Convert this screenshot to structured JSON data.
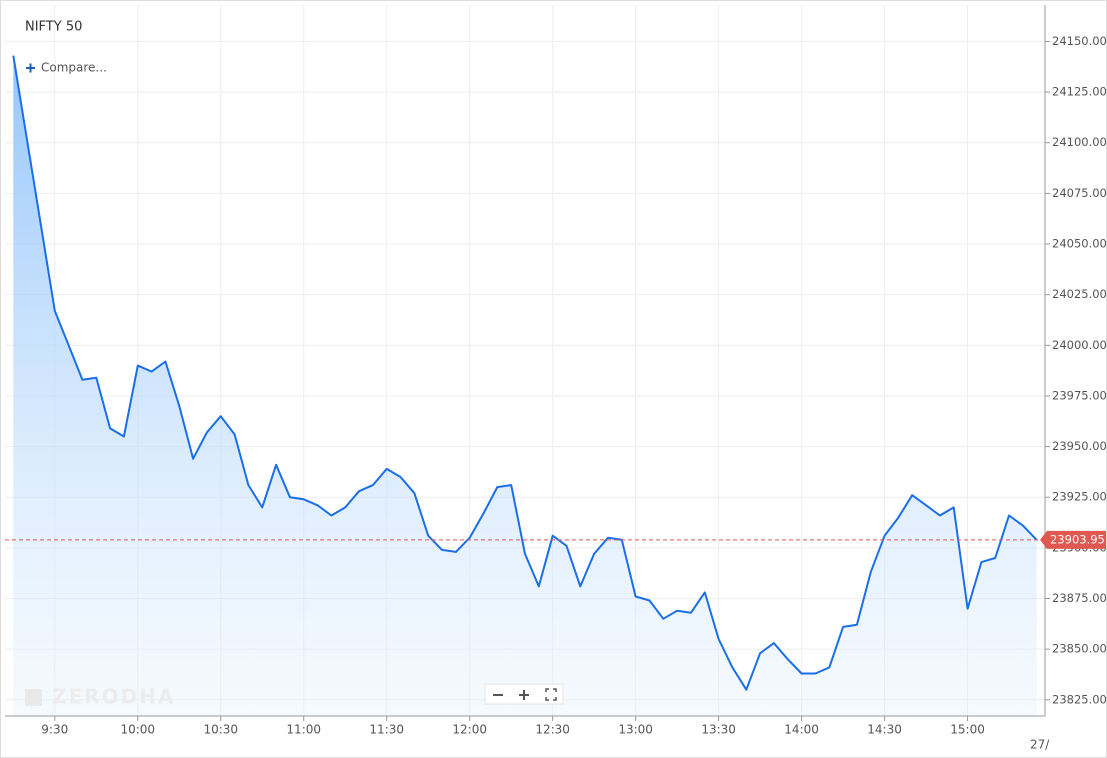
{
  "chart_data": {
    "type": "area",
    "title": "NIFTY 50",
    "compare_label": "Compare...",
    "watermark": "ZERODHA",
    "color": "#1a6fe8",
    "grid": true,
    "x": [
      555,
      565,
      570,
      575,
      580,
      585,
      590,
      595,
      600,
      605,
      610,
      615,
      620,
      625,
      630,
      635,
      640,
      645,
      650,
      655,
      660,
      665,
      670,
      675,
      680,
      685,
      690,
      695,
      700,
      705,
      710,
      715,
      720,
      725,
      730,
      735,
      740,
      745,
      750,
      755,
      760,
      765,
      770,
      775,
      780,
      785,
      790,
      795,
      800,
      805,
      810,
      815,
      820,
      825,
      830,
      835,
      840,
      845,
      850,
      855,
      860,
      865,
      870,
      875,
      880,
      885,
      890,
      895,
      900,
      905,
      910,
      915,
      920,
      925
    ],
    "values": [
      24143,
      24059,
      24017,
      24000,
      23983,
      23984,
      23959,
      23955,
      23990,
      23987,
      23992,
      23970,
      23944,
      23957,
      23965,
      23956,
      23931,
      23920,
      23941,
      23925,
      23924,
      23921,
      23916,
      23920,
      23928,
      23931,
      23939,
      23935,
      23927,
      23906,
      23899,
      23898,
      23905,
      23917,
      23930,
      23931,
      23897,
      23881,
      23906,
      23901,
      23881,
      23897,
      23905,
      23904,
      23876,
      23874,
      23865,
      23869,
      23868,
      23878,
      23855,
      23841,
      23830,
      23848,
      23853,
      23845,
      23838,
      23838,
      23841,
      23861,
      23862,
      23888,
      23906,
      23915,
      23926,
      23921,
      23916,
      23920,
      23870,
      23893,
      23895,
      23916,
      23911,
      23903.95
    ],
    "last_price": 23903.95,
    "xlim": [
      552,
      928
    ],
    "xticks": [
      {
        "value": 570,
        "label": "9:30"
      },
      {
        "value": 600,
        "label": "10:00"
      },
      {
        "value": 630,
        "label": "10:30"
      },
      {
        "value": 660,
        "label": "11:00"
      },
      {
        "value": 690,
        "label": "11:30"
      },
      {
        "value": 720,
        "label": "12:00"
      },
      {
        "value": 750,
        "label": "12:30"
      },
      {
        "value": 780,
        "label": "13:00"
      },
      {
        "value": 810,
        "label": "13:30"
      },
      {
        "value": 840,
        "label": "14:00"
      },
      {
        "value": 870,
        "label": "14:30"
      },
      {
        "value": 900,
        "label": "15:00"
      }
    ],
    "x_edge_label": "27/",
    "ylim": [
      23817,
      24168
    ],
    "yticks": [
      {
        "value": 23825,
        "label": "23825.00"
      },
      {
        "value": 23850,
        "label": "23850.00"
      },
      {
        "value": 23875,
        "label": "23875.00"
      },
      {
        "value": 23900,
        "label": "23900.00"
      },
      {
        "value": 23925,
        "label": "23925.00"
      },
      {
        "value": 23950,
        "label": "23950.00"
      },
      {
        "value": 23975,
        "label": "23975.00"
      },
      {
        "value": 24000,
        "label": "24000.00"
      },
      {
        "value": 24025,
        "label": "24025.00"
      },
      {
        "value": 24050,
        "label": "24050.00"
      },
      {
        "value": 24075,
        "label": "24075.00"
      },
      {
        "value": 24100,
        "label": "24100.00"
      },
      {
        "value": 24125,
        "label": "24125.00"
      },
      {
        "value": 24150,
        "label": "24150.00"
      }
    ]
  }
}
